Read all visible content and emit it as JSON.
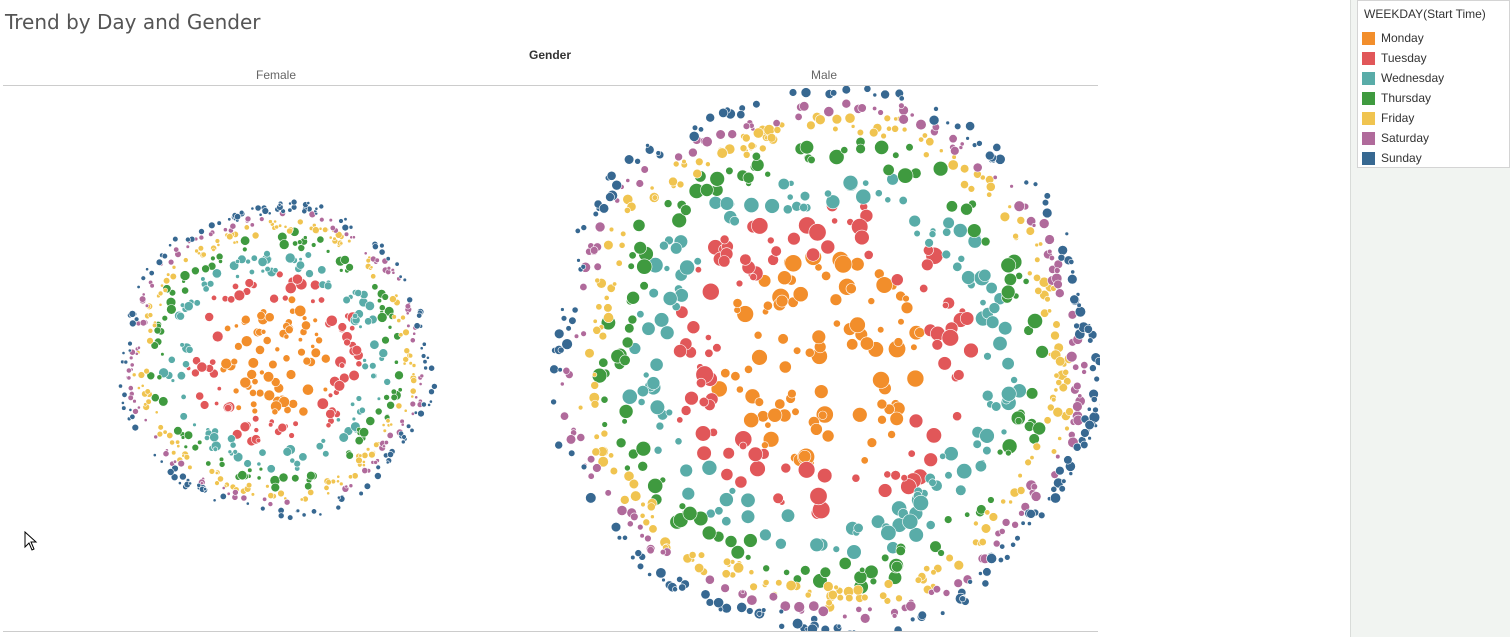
{
  "title": "Trend by Day and Gender",
  "chart_data": {
    "type": "packed bubbles",
    "column_header": "Gender",
    "columns": [
      "Female",
      "Male"
    ],
    "legend_title": "WEEKDAY(Start Time)",
    "series": [
      {
        "name": "Monday",
        "color": "#f28e2b"
      },
      {
        "name": "Tuesday",
        "color": "#e15759"
      },
      {
        "name": "Wednesday",
        "color": "#59aca8"
      },
      {
        "name": "Thursday",
        "color": "#3f9a3f"
      },
      {
        "name": "Friday",
        "color": "#f0c450"
      },
      {
        "name": "Saturday",
        "color": "#b06a9b"
      },
      {
        "name": "Sunday",
        "color": "#376891"
      }
    ]
  }
}
